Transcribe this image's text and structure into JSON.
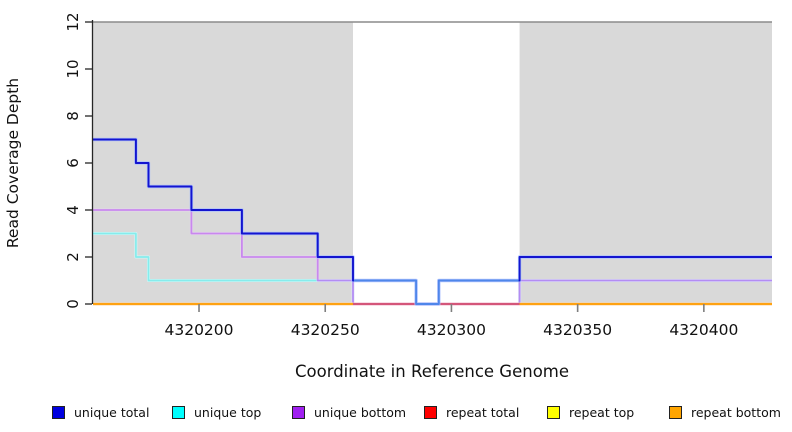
{
  "chart_data": {
    "type": "line",
    "subtype": "step-post",
    "title": "",
    "xlabel": "Coordinate in Reference Genome",
    "ylabel": "Read Coverage Depth",
    "xlim": [
      4320158,
      4320427
    ],
    "ylim": [
      0,
      12
    ],
    "x_ticks": [
      4320200,
      4320250,
      4320300,
      4320350,
      4320400
    ],
    "y_ticks": [
      0,
      2,
      4,
      6,
      8,
      10,
      12
    ],
    "grid": false,
    "legend_position": "bottom",
    "top_boundary_line_y": 12,
    "shaded_regions": [
      {
        "name": "repeat-region-left",
        "x0": 4320158,
        "x1": 4320261,
        "fill": "#d9d9d9"
      },
      {
        "name": "repeat-region-right",
        "x0": 4320327,
        "x1": 4320427,
        "fill": "#d9d9d9"
      }
    ],
    "series": [
      {
        "name": "unique total",
        "color": "#0000e0",
        "segments": [
          [
            [
              4320158,
              7
            ],
            [
              4320175,
              6
            ],
            [
              4320180,
              5
            ],
            [
              4320197,
              4
            ],
            [
              4320217,
              3
            ],
            [
              4320247,
              2
            ],
            [
              4320261,
              1
            ],
            [
              4320286,
              0
            ],
            [
              4320295,
              1
            ],
            [
              4320327,
              2
            ],
            [
              4320427,
              2
            ]
          ]
        ]
      },
      {
        "name": "unique top",
        "color": "#00ffff",
        "segments": [
          [
            [
              4320158,
              3
            ],
            [
              4320175,
              2
            ],
            [
              4320180,
              1
            ],
            [
              4320261,
              0
            ],
            [
              4320327,
              1
            ],
            [
              4320427,
              1
            ]
          ]
        ]
      },
      {
        "name": "unique bottom",
        "color": "#a020f0",
        "segments": [
          [
            [
              4320158,
              4
            ],
            [
              4320197,
              3
            ],
            [
              4320217,
              2
            ],
            [
              4320247,
              1
            ],
            [
              4320261,
              0
            ],
            [
              4320327,
              1
            ],
            [
              4320427,
              1
            ]
          ]
        ]
      },
      {
        "name": "repeat total",
        "color": "#ff0000",
        "segments": [
          [
            [
              4320158,
              0
            ],
            [
              4320427,
              0
            ]
          ]
        ]
      },
      {
        "name": "repeat top",
        "color": "#ffff00",
        "segments": [
          [
            [
              4320158,
              0
            ],
            [
              4320427,
              0
            ]
          ]
        ]
      },
      {
        "name": "repeat bottom",
        "color": "#ffa500",
        "segments": [
          [
            [
              4320158,
              0
            ],
            [
              4320261,
              0
            ]
          ],
          [
            [
              4320327,
              0
            ],
            [
              4320427,
              0
            ]
          ]
        ]
      }
    ],
    "legend": [
      {
        "label": "unique total",
        "color": "#0000e0"
      },
      {
        "label": "unique top",
        "color": "#00ffff"
      },
      {
        "label": "unique bottom",
        "color": "#a020f0"
      },
      {
        "label": "repeat total",
        "color": "#ff0000"
      },
      {
        "label": "repeat top",
        "color": "#ffff00"
      },
      {
        "label": "repeat bottom",
        "color": "#ffa500"
      }
    ]
  },
  "colors": {
    "region_fill": "#d9d9d9",
    "top_line": "#8c8c8c",
    "axis": "#262626",
    "x_tick": "#7f7f7f",
    "unique_total_in_unique_region": "#4f86ea"
  }
}
